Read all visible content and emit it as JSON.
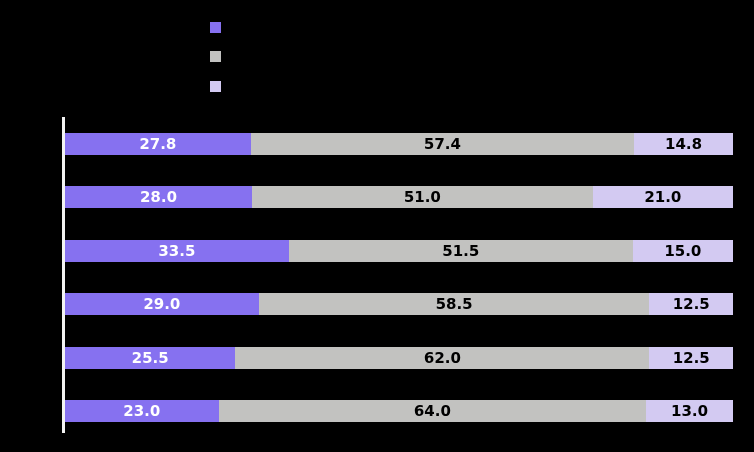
{
  "canvas": {
    "background_color": "#000000",
    "axis_line_color": "#f2f2f2"
  },
  "legend": {
    "items": [
      {
        "series": "series-1",
        "color": "#8671f0"
      },
      {
        "series": "series-2",
        "color": "#c2c2c0"
      },
      {
        "series": "series-3",
        "color": "#d3caf2"
      }
    ]
  },
  "chart_data": {
    "type": "bar",
    "orientation": "horizontal",
    "stacked": true,
    "unit": "percent",
    "stack_total": 100,
    "num_bars": 6,
    "grid": false,
    "legend_position": "top",
    "series": [
      {
        "name": "series-1",
        "color": "#8671f0",
        "label_color": "#ffffff",
        "values": [
          27.8,
          28.0,
          33.5,
          29.0,
          25.5,
          23.0
        ],
        "labels": [
          "27.8",
          "28.0",
          "33.5",
          "29.0",
          "25.5",
          "23.0"
        ]
      },
      {
        "name": "series-2",
        "color": "#c2c2c0",
        "label_color": "#000000",
        "values": [
          57.4,
          51.0,
          51.5,
          58.5,
          62.0,
          64.0
        ],
        "labels": [
          "57.4",
          "51.0",
          "51.5",
          "58.5",
          "62.0",
          "64.0"
        ]
      },
      {
        "name": "series-3",
        "color": "#d3caf2",
        "label_color": "#000000",
        "values": [
          14.8,
          21.0,
          15.0,
          12.5,
          12.5,
          13.0
        ],
        "labels": [
          "14.8",
          "21.0",
          "15.0",
          "12.5",
          "12.5",
          "13.0"
        ]
      }
    ]
  }
}
